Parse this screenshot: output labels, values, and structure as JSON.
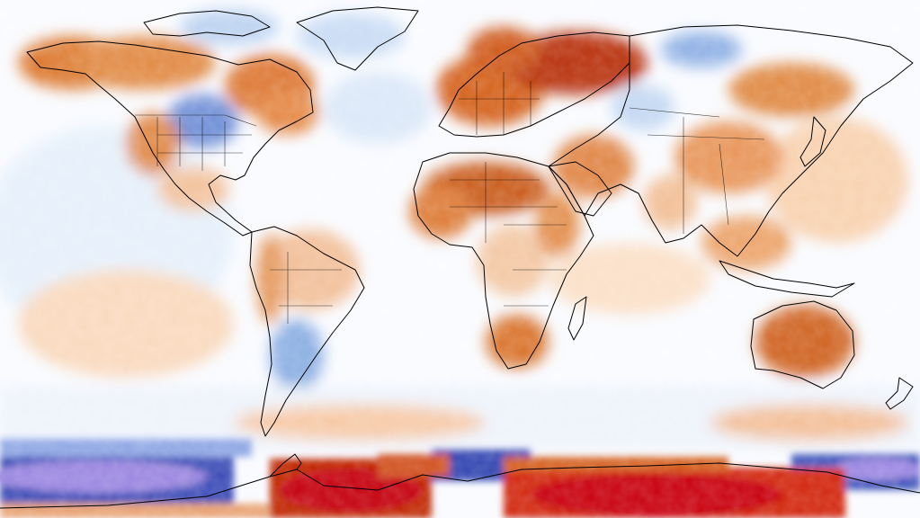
{
  "map": {
    "kind": "global temperature anomaly (equirectangular)",
    "palette": {
      "deep_warm": "#b80000",
      "warm_strong": "#c8420c",
      "warm": "#e88a3a",
      "warm_light": "#f6c8a0",
      "neutral": "#ffffff",
      "cool_light": "#cfe3f8",
      "cool": "#7fa8e0",
      "cool_strong": "#3346b0",
      "deep_cool": "#8c78d8"
    },
    "outline_color": "#000000",
    "land_outline_icon": "country-borders-outline",
    "regions_noted": [
      "north-america-warm",
      "central-north-america-cool",
      "europe-warm",
      "russia-deep-warm",
      "sahara-warm",
      "australia-warm",
      "antarctica-deep-warm",
      "southern-ocean-band-cool"
    ]
  }
}
